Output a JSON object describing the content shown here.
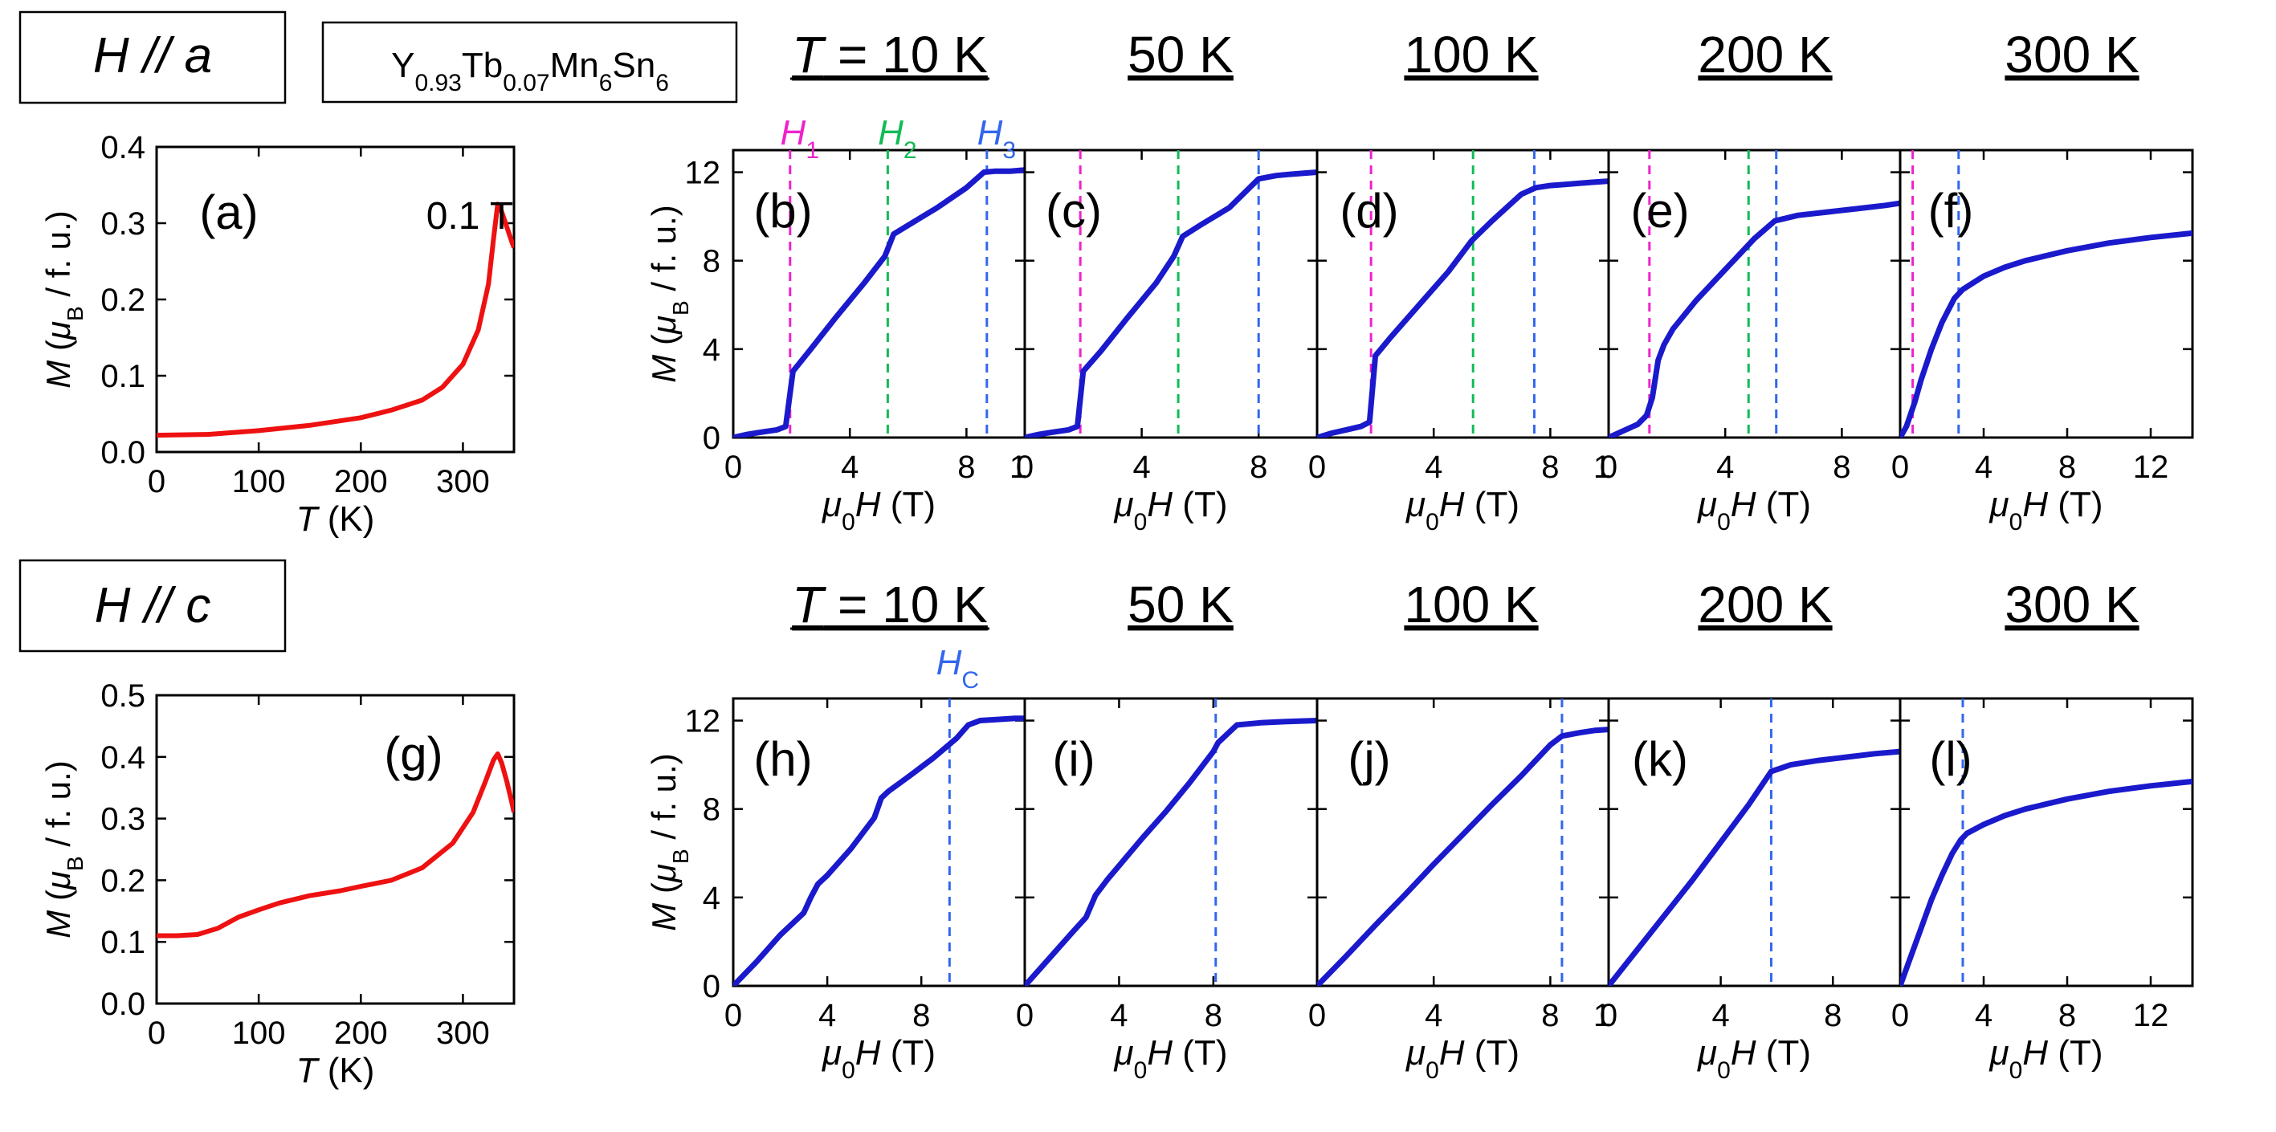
{
  "figure": {
    "compound": "Y0.93Tb0.07Mn6Sn6",
    "compound_parts": [
      {
        "t": "Y",
        "sub": false
      },
      {
        "t": "0.93",
        "sub": true
      },
      {
        "t": "Tb",
        "sub": false
      },
      {
        "t": "0.07",
        "sub": true
      },
      {
        "t": "Mn",
        "sub": false
      },
      {
        "t": "6",
        "sub": true
      },
      {
        "t": "Sn",
        "sub": false
      },
      {
        "t": "6",
        "sub": true
      }
    ],
    "rows": [
      {
        "id": "a",
        "box_label": "H // a",
        "field_letter": "H",
        "field_sep": " // ",
        "field_axis": "a"
      },
      {
        "id": "c",
        "box_label": "H // c",
        "field_letter": "H",
        "field_sep": " // ",
        "field_axis": "c"
      }
    ],
    "temperature_headers": [
      "T = 10 K",
      "50 K",
      "100 K",
      "200 K",
      "300 K"
    ],
    "critical_field_labels": {
      "top": [
        "H1",
        "H2",
        "H3"
      ],
      "bottom": [
        "HC"
      ]
    },
    "colors": {
      "MT": "#ee1111",
      "MH": "#1a1acc",
      "H1": "#ee22cc",
      "H2": "#11bb55",
      "H3": "#3366ee",
      "HC": "#3366ee",
      "axis": "#000000"
    }
  },
  "chart_data": [
    {
      "type": "line",
      "panel": "(a)",
      "annotation": "0.1 T",
      "xlabel": "T (K)",
      "ylabel": "M (μB / f. u.)",
      "xlim": [
        0,
        350
      ],
      "ylim": [
        0,
        0.4
      ],
      "xticks": [
        0,
        100,
        200,
        300
      ],
      "yticks": [
        0.0,
        0.1,
        0.2,
        0.3,
        0.4
      ],
      "ytick_labels": [
        "0.0",
        "0.1",
        "0.2",
        "0.3",
        "0.4"
      ],
      "series": [
        {
          "name": "M(T), H // a, 0.1 T",
          "x": [
            0,
            50,
            100,
            150,
            200,
            230,
            260,
            280,
            300,
            315,
            325,
            330,
            334,
            338,
            343,
            348,
            350
          ],
          "y": [
            0.022,
            0.023,
            0.028,
            0.035,
            0.045,
            0.055,
            0.068,
            0.085,
            0.115,
            0.16,
            0.22,
            0.28,
            0.325,
            0.315,
            0.295,
            0.275,
            0.268
          ]
        }
      ]
    },
    {
      "type": "line",
      "panel": "(b)",
      "header": "T = 10 K",
      "xlabel": "μ0H (T)",
      "ylabel": "M (μB / f. u.)",
      "xlim": [
        0,
        10
      ],
      "ylim": [
        0,
        13
      ],
      "xticks": [
        0,
        4,
        8
      ],
      "yticks": [
        0,
        4,
        8,
        12
      ],
      "xtick_clip_label": "1",
      "series": [
        {
          "name": "M(H), H // a, 10 K",
          "x": [
            0,
            0.5,
            1.0,
            1.5,
            1.8,
            2.05,
            2.6,
            3.5,
            4.5,
            5.2,
            5.5,
            6.0,
            7.0,
            8.0,
            8.6,
            9.0,
            9.5,
            10.0
          ],
          "y": [
            0,
            0.15,
            0.25,
            0.35,
            0.5,
            3.0,
            3.9,
            5.4,
            7.0,
            8.2,
            9.2,
            9.6,
            10.4,
            11.3,
            12.0,
            12.05,
            12.05,
            12.1
          ]
        }
      ],
      "markers": [
        {
          "name": "H1",
          "x": 1.95
        },
        {
          "name": "H2",
          "x": 5.3
        },
        {
          "name": "H3",
          "x": 8.7
        }
      ]
    },
    {
      "type": "line",
      "panel": "(c)",
      "header": "50 K",
      "xlabel": "μ0H (T)",
      "ylabel": "",
      "xlim": [
        0,
        10
      ],
      "ylim": [
        0,
        13
      ],
      "xticks": [
        0,
        4,
        8
      ],
      "yticks": [
        0,
        4,
        8,
        12
      ],
      "xtick_clip_label": "",
      "series": [
        {
          "name": "M(H), H // a, 50 K",
          "x": [
            0,
            0.5,
            1.0,
            1.5,
            1.8,
            2.0,
            2.6,
            3.5,
            4.5,
            5.1,
            5.4,
            6.0,
            7.0,
            8.0,
            8.6,
            9.0,
            9.5,
            10.0
          ],
          "y": [
            0,
            0.15,
            0.25,
            0.35,
            0.5,
            3.0,
            3.9,
            5.4,
            7.0,
            8.2,
            9.1,
            9.6,
            10.4,
            11.7,
            11.85,
            11.9,
            11.95,
            12.0
          ]
        }
      ],
      "markers": [
        {
          "name": "H1",
          "x": 1.9
        },
        {
          "name": "H2",
          "x": 5.25
        },
        {
          "name": "H3",
          "x": 8.0
        }
      ]
    },
    {
      "type": "line",
      "panel": "(d)",
      "header": "100 K",
      "xlabel": "μ0H (T)",
      "ylabel": "",
      "xlim": [
        0,
        10
      ],
      "ylim": [
        0,
        13
      ],
      "xticks": [
        0,
        4,
        8
      ],
      "yticks": [
        0,
        4,
        8,
        12
      ],
      "xtick_clip_label": "1",
      "series": [
        {
          "name": "M(H), H // a, 100 K",
          "x": [
            0,
            0.5,
            1.0,
            1.5,
            1.8,
            2.0,
            2.5,
            3.5,
            4.5,
            5.3,
            6.0,
            7.0,
            7.5,
            8.0,
            8.5,
            9.0,
            9.5,
            10.0
          ],
          "y": [
            0,
            0.2,
            0.35,
            0.5,
            0.7,
            3.7,
            4.5,
            6.0,
            7.5,
            8.9,
            9.8,
            11.0,
            11.3,
            11.4,
            11.45,
            11.5,
            11.55,
            11.6
          ]
        }
      ],
      "markers": [
        {
          "name": "H1",
          "x": 1.85
        },
        {
          "name": "H2",
          "x": 5.35
        },
        {
          "name": "H3",
          "x": 7.45
        }
      ]
    },
    {
      "type": "line",
      "panel": "(e)",
      "header": "200 K",
      "xlabel": "μ0H (T)",
      "ylabel": "",
      "xlim": [
        0,
        10
      ],
      "ylim": [
        0,
        13
      ],
      "xticks": [
        0,
        4,
        8
      ],
      "yticks": [
        0,
        4,
        8,
        12
      ],
      "xtick_clip_label": "",
      "series": [
        {
          "name": "M(H), H // a, 200 K",
          "x": [
            0,
            0.5,
            1.0,
            1.3,
            1.5,
            1.7,
            1.9,
            2.2,
            3.0,
            4.0,
            5.0,
            5.7,
            6.5,
            7.5,
            8.5,
            9.5,
            10.0
          ],
          "y": [
            0,
            0.3,
            0.6,
            1.0,
            1.8,
            3.5,
            4.2,
            4.9,
            6.2,
            7.6,
            9.0,
            9.8,
            10.05,
            10.2,
            10.35,
            10.5,
            10.6
          ]
        }
      ],
      "markers": [
        {
          "name": "H1",
          "x": 1.4
        },
        {
          "name": "H2",
          "x": 4.8
        },
        {
          "name": "H3",
          "x": 5.75
        }
      ]
    },
    {
      "type": "line",
      "panel": "(f)",
      "header": "300 K",
      "xlabel": "μ0H (T)",
      "ylabel": "",
      "xlim": [
        0,
        14
      ],
      "ylim": [
        0,
        13
      ],
      "xticks": [
        0,
        4,
        8,
        12
      ],
      "yticks": [
        0,
        4,
        8,
        12
      ],
      "xtick_clip_label": "",
      "series": [
        {
          "name": "M(H), H // a, 300 K",
          "x": [
            0,
            0.3,
            0.7,
            1.0,
            1.5,
            2.0,
            2.6,
            3.0,
            4.0,
            5.0,
            6.0,
            8.0,
            10.0,
            12.0,
            14.0
          ],
          "y": [
            0,
            0.5,
            1.6,
            2.6,
            4.0,
            5.2,
            6.3,
            6.7,
            7.3,
            7.7,
            8.0,
            8.45,
            8.8,
            9.05,
            9.25
          ]
        }
      ],
      "markers": [
        {
          "name": "H1",
          "x": 0.6
        },
        {
          "name": "H3",
          "x": 2.8
        }
      ]
    },
    {
      "type": "line",
      "panel": "(g)",
      "xlabel": "T (K)",
      "ylabel": "M (μB / f. u.)",
      "xlim": [
        0,
        350
      ],
      "ylim": [
        0,
        0.5
      ],
      "xticks": [
        0,
        100,
        200,
        300
      ],
      "yticks": [
        0.0,
        0.1,
        0.2,
        0.3,
        0.4,
        0.5
      ],
      "ytick_labels": [
        "0.0",
        "0.1",
        "0.2",
        "0.3",
        "0.4",
        "0.5"
      ],
      "series": [
        {
          "name": "M(T), H // c",
          "x": [
            0,
            20,
            40,
            60,
            80,
            100,
            120,
            150,
            180,
            200,
            230,
            260,
            290,
            310,
            322,
            330,
            334,
            338,
            343,
            348,
            350
          ],
          "y": [
            0.11,
            0.11,
            0.112,
            0.122,
            0.14,
            0.152,
            0.163,
            0.175,
            0.183,
            0.19,
            0.2,
            0.22,
            0.26,
            0.31,
            0.36,
            0.395,
            0.405,
            0.39,
            0.36,
            0.325,
            0.31
          ]
        }
      ]
    },
    {
      "type": "line",
      "panel": "(h)",
      "header": "T = 10 K",
      "xlabel": "μ0H (T)",
      "ylabel": "M (μB / f. u.)",
      "xlim": [
        0,
        12.4
      ],
      "ylim": [
        0,
        13
      ],
      "xticks": [
        0,
        4,
        8
      ],
      "yticks": [
        0,
        4,
        8,
        12
      ],
      "xtick_clip_label": "",
      "series": [
        {
          "name": "M(H), H // c, 10 K",
          "x": [
            0,
            1.0,
            2.0,
            3.0,
            3.3,
            3.6,
            4.0,
            5.0,
            6.0,
            6.3,
            6.6,
            7.5,
            8.5,
            9.5,
            10.0,
            10.5,
            11.2,
            12.0,
            12.4
          ],
          "y": [
            0,
            1.1,
            2.3,
            3.3,
            4.0,
            4.6,
            5.0,
            6.2,
            7.6,
            8.5,
            8.8,
            9.5,
            10.3,
            11.2,
            11.8,
            12.0,
            12.05,
            12.1,
            12.1
          ]
        }
      ],
      "markers": [
        {
          "name": "HC",
          "x": 9.2
        }
      ]
    },
    {
      "type": "line",
      "panel": "(i)",
      "header": "50 K",
      "xlabel": "μ0H (T)",
      "ylabel": "",
      "xlim": [
        0,
        12.4
      ],
      "ylim": [
        0,
        13
      ],
      "xticks": [
        0,
        4,
        8
      ],
      "yticks": [
        0,
        4,
        8,
        12
      ],
      "xtick_clip_label": "",
      "series": [
        {
          "name": "M(H), H // c, 50 K",
          "x": [
            0,
            1.0,
            2.0,
            2.6,
            3.0,
            3.5,
            5.0,
            6.0,
            7.0,
            8.0,
            8.2,
            9.0,
            10.0,
            11.0,
            12.4
          ],
          "y": [
            0,
            1.2,
            2.4,
            3.1,
            4.1,
            4.8,
            6.7,
            7.9,
            9.2,
            10.6,
            11.0,
            11.8,
            11.9,
            11.95,
            12.0
          ]
        }
      ],
      "markers": [
        {
          "name": "HC",
          "x": 8.1
        }
      ]
    },
    {
      "type": "line",
      "panel": "(j)",
      "header": "100 K",
      "xlabel": "μ0H (T)",
      "ylabel": "",
      "xlim": [
        0,
        10
      ],
      "ylim": [
        0,
        13
      ],
      "xticks": [
        0,
        4,
        8
      ],
      "yticks": [
        0,
        4,
        8,
        12
      ],
      "xtick_clip_label": "1",
      "series": [
        {
          "name": "M(H), H // c, 100 K",
          "x": [
            0,
            1.0,
            2.0,
            3.0,
            4.0,
            5.0,
            6.0,
            7.0,
            8.0,
            8.4,
            9.0,
            9.5,
            10.0
          ],
          "y": [
            0,
            1.35,
            2.75,
            4.1,
            5.5,
            6.85,
            8.2,
            9.5,
            10.9,
            11.3,
            11.45,
            11.55,
            11.6
          ]
        }
      ],
      "markers": [
        {
          "name": "HC",
          "x": 8.4
        }
      ]
    },
    {
      "type": "line",
      "panel": "(k)",
      "header": "200 K",
      "xlabel": "μ0H (T)",
      "ylabel": "",
      "xlim": [
        0,
        10.4
      ],
      "ylim": [
        0,
        13
      ],
      "xticks": [
        0,
        4,
        8
      ],
      "yticks": [
        0,
        4,
        8,
        12
      ],
      "xtick_clip_label": "",
      "series": [
        {
          "name": "M(H), H // c, 200 K",
          "x": [
            0,
            1.0,
            2.0,
            3.0,
            4.0,
            5.0,
            5.8,
            6.5,
            7.5,
            8.5,
            9.5,
            10.4
          ],
          "y": [
            0,
            1.6,
            3.2,
            4.8,
            6.5,
            8.2,
            9.7,
            10.0,
            10.2,
            10.35,
            10.5,
            10.6
          ]
        }
      ],
      "markers": [
        {
          "name": "HC",
          "x": 5.8
        }
      ]
    },
    {
      "type": "line",
      "panel": "(l)",
      "header": "300 K",
      "xlabel": "μ0H (T)",
      "ylabel": "",
      "xlim": [
        0,
        14
      ],
      "ylim": [
        0,
        13
      ],
      "xticks": [
        0,
        4,
        8,
        12
      ],
      "yticks": [
        0,
        4,
        8,
        12
      ],
      "xtick_clip_label": "",
      "series": [
        {
          "name": "M(H), H // c, 300 K",
          "x": [
            0,
            0.5,
            1.0,
            1.5,
            2.0,
            2.5,
            2.9,
            3.2,
            4.0,
            5.0,
            6.0,
            8.0,
            10.0,
            12.0,
            14.0
          ],
          "y": [
            0,
            1.3,
            2.6,
            3.9,
            5.0,
            6.0,
            6.6,
            6.9,
            7.3,
            7.7,
            8.0,
            8.45,
            8.8,
            9.05,
            9.25
          ]
        }
      ],
      "markers": [
        {
          "name": "HC",
          "x": 3.0
        }
      ]
    }
  ]
}
